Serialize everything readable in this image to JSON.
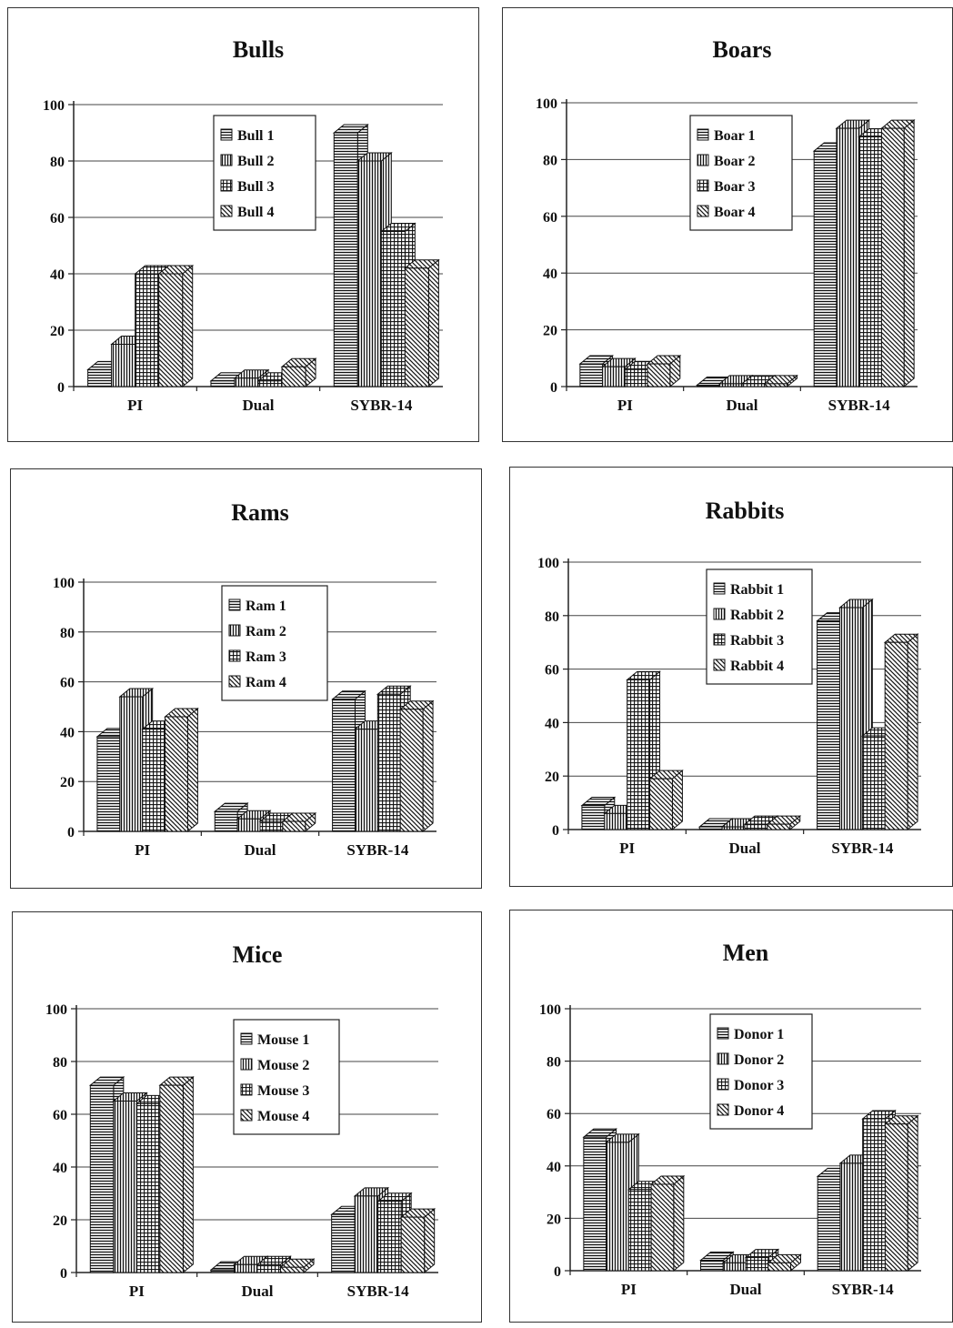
{
  "chart_data": [
    {
      "type": "bar",
      "title": "Bulls",
      "categories": [
        "PI",
        "Dual",
        "SYBR-14"
      ],
      "ylim": [
        0,
        100
      ],
      "yticks": [
        0,
        20,
        40,
        60,
        80,
        100
      ],
      "grid": true,
      "legend_position": "top-center",
      "series": [
        {
          "name": "Bull 1",
          "pattern": "hlines",
          "values": [
            6,
            2,
            90
          ]
        },
        {
          "name": "Bull 2",
          "pattern": "vlines",
          "values": [
            15,
            3,
            80
          ]
        },
        {
          "name": "Bull 3",
          "pattern": "grid",
          "values": [
            40,
            2,
            55
          ]
        },
        {
          "name": "Bull 4",
          "pattern": "diag",
          "values": [
            40,
            7,
            42
          ]
        }
      ]
    },
    {
      "type": "bar",
      "title": "Boars",
      "categories": [
        "PI",
        "Dual",
        "SYBR-14"
      ],
      "ylim": [
        0,
        100
      ],
      "yticks": [
        0,
        20,
        40,
        60,
        80,
        100
      ],
      "grid": true,
      "legend_position": "top-center",
      "series": [
        {
          "name": "Boar 1",
          "pattern": "hlines",
          "values": [
            8,
            0.5,
            83
          ]
        },
        {
          "name": "Boar 2",
          "pattern": "vlines",
          "values": [
            7,
            1,
            91
          ]
        },
        {
          "name": "Boar 3",
          "pattern": "grid",
          "values": [
            6,
            1,
            88
          ]
        },
        {
          "name": "Boar 4",
          "pattern": "diag",
          "values": [
            8,
            1,
            91
          ]
        }
      ]
    },
    {
      "type": "bar",
      "title": "Rams",
      "categories": [
        "PI",
        "Dual",
        "SYBR-14"
      ],
      "ylim": [
        0,
        100
      ],
      "yticks": [
        0,
        20,
        40,
        60,
        80,
        100
      ],
      "grid": true,
      "legend_position": "top-center",
      "series": [
        {
          "name": "Ram 1",
          "pattern": "hlines",
          "values": [
            38,
            8,
            53
          ]
        },
        {
          "name": "Ram 2",
          "pattern": "vlines",
          "values": [
            54,
            5,
            41
          ]
        },
        {
          "name": "Ram 3",
          "pattern": "grid",
          "values": [
            41,
            4,
            55
          ]
        },
        {
          "name": "Ram 4",
          "pattern": "diag",
          "values": [
            46,
            4,
            49
          ]
        }
      ]
    },
    {
      "type": "bar",
      "title": "Rabbits",
      "categories": [
        "PI",
        "Dual",
        "SYBR-14"
      ],
      "ylim": [
        0,
        100
      ],
      "yticks": [
        0,
        20,
        40,
        60,
        80,
        100
      ],
      "grid": true,
      "legend_position": "top-center",
      "series": [
        {
          "name": "Rabbit 1",
          "pattern": "hlines",
          "values": [
            9,
            1,
            78
          ]
        },
        {
          "name": "Rabbit 2",
          "pattern": "vlines",
          "values": [
            6,
            1,
            83
          ]
        },
        {
          "name": "Rabbit 3",
          "pattern": "grid",
          "values": [
            56,
            2,
            35
          ]
        },
        {
          "name": "Rabbit 4",
          "pattern": "diag",
          "values": [
            19,
            2,
            70
          ]
        }
      ]
    },
    {
      "type": "bar",
      "title": "Mice",
      "categories": [
        "PI",
        "Dual",
        "SYBR-14"
      ],
      "ylim": [
        0,
        100
      ],
      "yticks": [
        0,
        20,
        40,
        60,
        80,
        100
      ],
      "grid": true,
      "legend_position": "top-center",
      "series": [
        {
          "name": "Mouse 1",
          "pattern": "hlines",
          "values": [
            71,
            1,
            22
          ]
        },
        {
          "name": "Mouse 2",
          "pattern": "vlines",
          "values": [
            65,
            3,
            29
          ]
        },
        {
          "name": "Mouse 3",
          "pattern": "grid",
          "values": [
            64,
            3,
            27
          ]
        },
        {
          "name": "Mouse 4",
          "pattern": "diag",
          "values": [
            71,
            2,
            21
          ]
        }
      ]
    },
    {
      "type": "bar",
      "title": "Men",
      "categories": [
        "PI",
        "Dual",
        "SYBR-14"
      ],
      "ylim": [
        0,
        100
      ],
      "yticks": [
        0,
        20,
        40,
        60,
        80,
        100
      ],
      "grid": true,
      "legend_position": "top-center",
      "series": [
        {
          "name": "Donor 1",
          "pattern": "hlines",
          "values": [
            51,
            4,
            36
          ]
        },
        {
          "name": "Donor 2",
          "pattern": "vlines",
          "values": [
            49,
            3,
            41
          ]
        },
        {
          "name": "Donor 3",
          "pattern": "grid",
          "values": [
            31,
            5,
            58
          ]
        },
        {
          "name": "Donor 4",
          "pattern": "diag",
          "values": [
            33,
            3,
            56
          ]
        }
      ]
    }
  ]
}
